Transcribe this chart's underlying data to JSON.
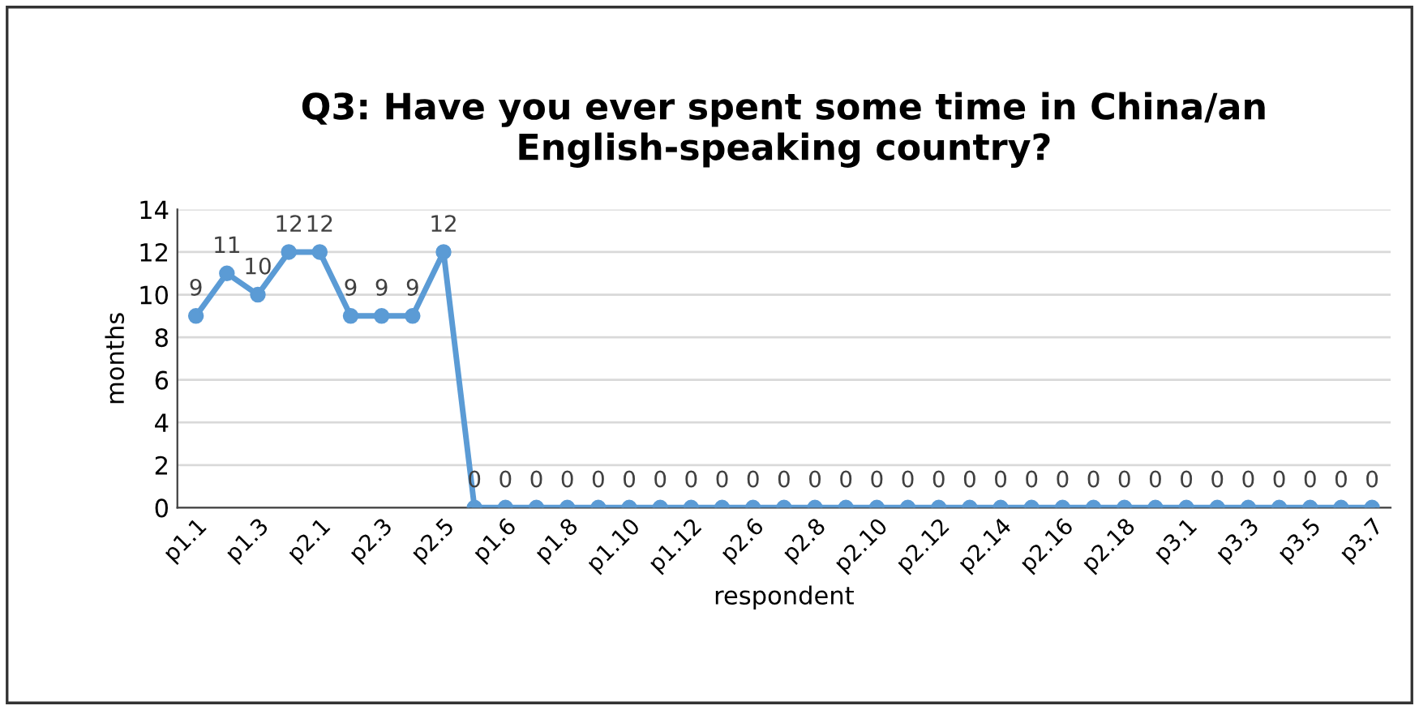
{
  "chart_data": {
    "type": "line",
    "title": "Q3: Have you ever spent some time in China/an\nEnglish-speaking country?",
    "xlabel": "respondent",
    "ylabel": "months",
    "categories": [
      "p1.1",
      null,
      "p1.3",
      null,
      "p2.1",
      null,
      "p2.3",
      null,
      "p2.5",
      null,
      "p1.6",
      null,
      "p1.8",
      null,
      "p1.10",
      null,
      "p1.12",
      null,
      "p2.6",
      null,
      "p2.8",
      null,
      "p2.10",
      null,
      "p2.12",
      null,
      "p2.14",
      null,
      "p2.16",
      null,
      "p2.18",
      null,
      "p3.1",
      null,
      "p3.3",
      null,
      "p3.5",
      null,
      "p3.7"
    ],
    "series": [
      {
        "color": "#5b9bd5",
        "values": [
          9,
          11,
          10,
          12,
          12,
          9,
          9,
          9,
          12,
          0,
          0,
          0,
          0,
          0,
          0,
          0,
          0,
          0,
          0,
          0,
          0,
          0,
          0,
          0,
          0,
          0,
          0,
          0,
          0,
          0,
          0,
          0,
          0,
          0,
          0,
          0,
          0,
          0,
          0
        ]
      }
    ],
    "ylim": [
      0,
      14
    ],
    "yticks": [
      0,
      2,
      4,
      6,
      8,
      10,
      12,
      14
    ],
    "grid": "y",
    "marker": "circle",
    "line_style": "solid",
    "data_labels": true
  }
}
